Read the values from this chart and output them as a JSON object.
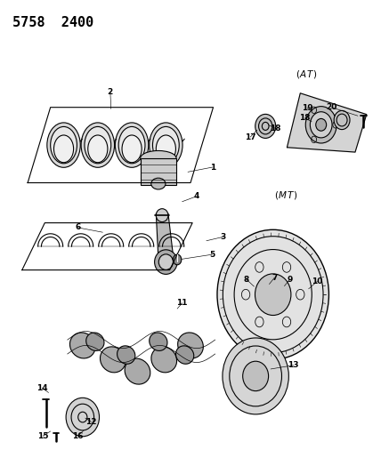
{
  "title_code": "5758  2400",
  "bg_color": "#ffffff",
  "line_color": "#000000",
  "fig_width": 4.28,
  "fig_height": 5.33,
  "dpi": 100
}
